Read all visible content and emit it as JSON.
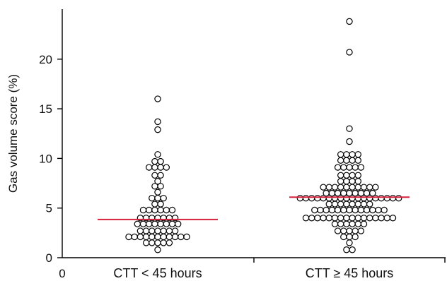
{
  "chart_data": {
    "type": "scatter",
    "subtype": "dot-strip",
    "title": "",
    "ylabel": "Gas volume score (%)",
    "xlabel": "",
    "x_origin_label": "0",
    "ylim": [
      0,
      25
    ],
    "yticks": [
      0,
      5,
      10,
      15,
      20
    ],
    "grid": false,
    "median_color": "#d6213a",
    "categories": [
      "CTT < 45 hours",
      "CTT ≥ 45 hours"
    ],
    "series": [
      {
        "median": 3.85,
        "rows": [
          {
            "y": 0.8,
            "n": 1
          },
          {
            "y": 1.5,
            "n": 5
          },
          {
            "y": 2.1,
            "n": 11
          },
          {
            "y": 2.7,
            "n": 7
          },
          {
            "y": 3.4,
            "n": 8
          },
          {
            "y": 4.0,
            "n": 7
          },
          {
            "y": 4.8,
            "n": 6
          },
          {
            "y": 5.4,
            "n": 2
          },
          {
            "y": 6.0,
            "n": 3
          },
          {
            "y": 6.6,
            "n": 1
          },
          {
            "y": 7.2,
            "n": 2
          },
          {
            "y": 7.7,
            "n": 1
          },
          {
            "y": 8.3,
            "n": 2
          },
          {
            "y": 9.1,
            "n": 4
          },
          {
            "y": 9.7,
            "n": 2
          },
          {
            "y": 10.4,
            "n": 1
          },
          {
            "y": 12.9,
            "n": 1
          },
          {
            "y": 13.7,
            "n": 1
          },
          {
            "y": 16.0,
            "n": 1
          }
        ]
      },
      {
        "median": 6.1,
        "rows": [
          {
            "y": 0.8,
            "n": 2
          },
          {
            "y": 1.5,
            "n": 1
          },
          {
            "y": 2.1,
            "n": 3
          },
          {
            "y": 2.7,
            "n": 5
          },
          {
            "y": 3.4,
            "n": 6
          },
          {
            "y": 4.0,
            "n": 16
          },
          {
            "y": 4.8,
            "n": 13
          },
          {
            "y": 5.4,
            "n": 8
          },
          {
            "y": 6.0,
            "n": 18
          },
          {
            "y": 6.5,
            "n": 9
          },
          {
            "y": 7.1,
            "n": 10
          },
          {
            "y": 7.7,
            "n": 4
          },
          {
            "y": 8.3,
            "n": 4
          },
          {
            "y": 9.1,
            "n": 5
          },
          {
            "y": 9.8,
            "n": 4
          },
          {
            "y": 10.4,
            "n": 4
          },
          {
            "y": 11.7,
            "n": 1
          },
          {
            "y": 13.0,
            "n": 1
          },
          {
            "y": 20.7,
            "n": 1
          },
          {
            "y": 23.8,
            "n": 1
          }
        ]
      }
    ]
  }
}
